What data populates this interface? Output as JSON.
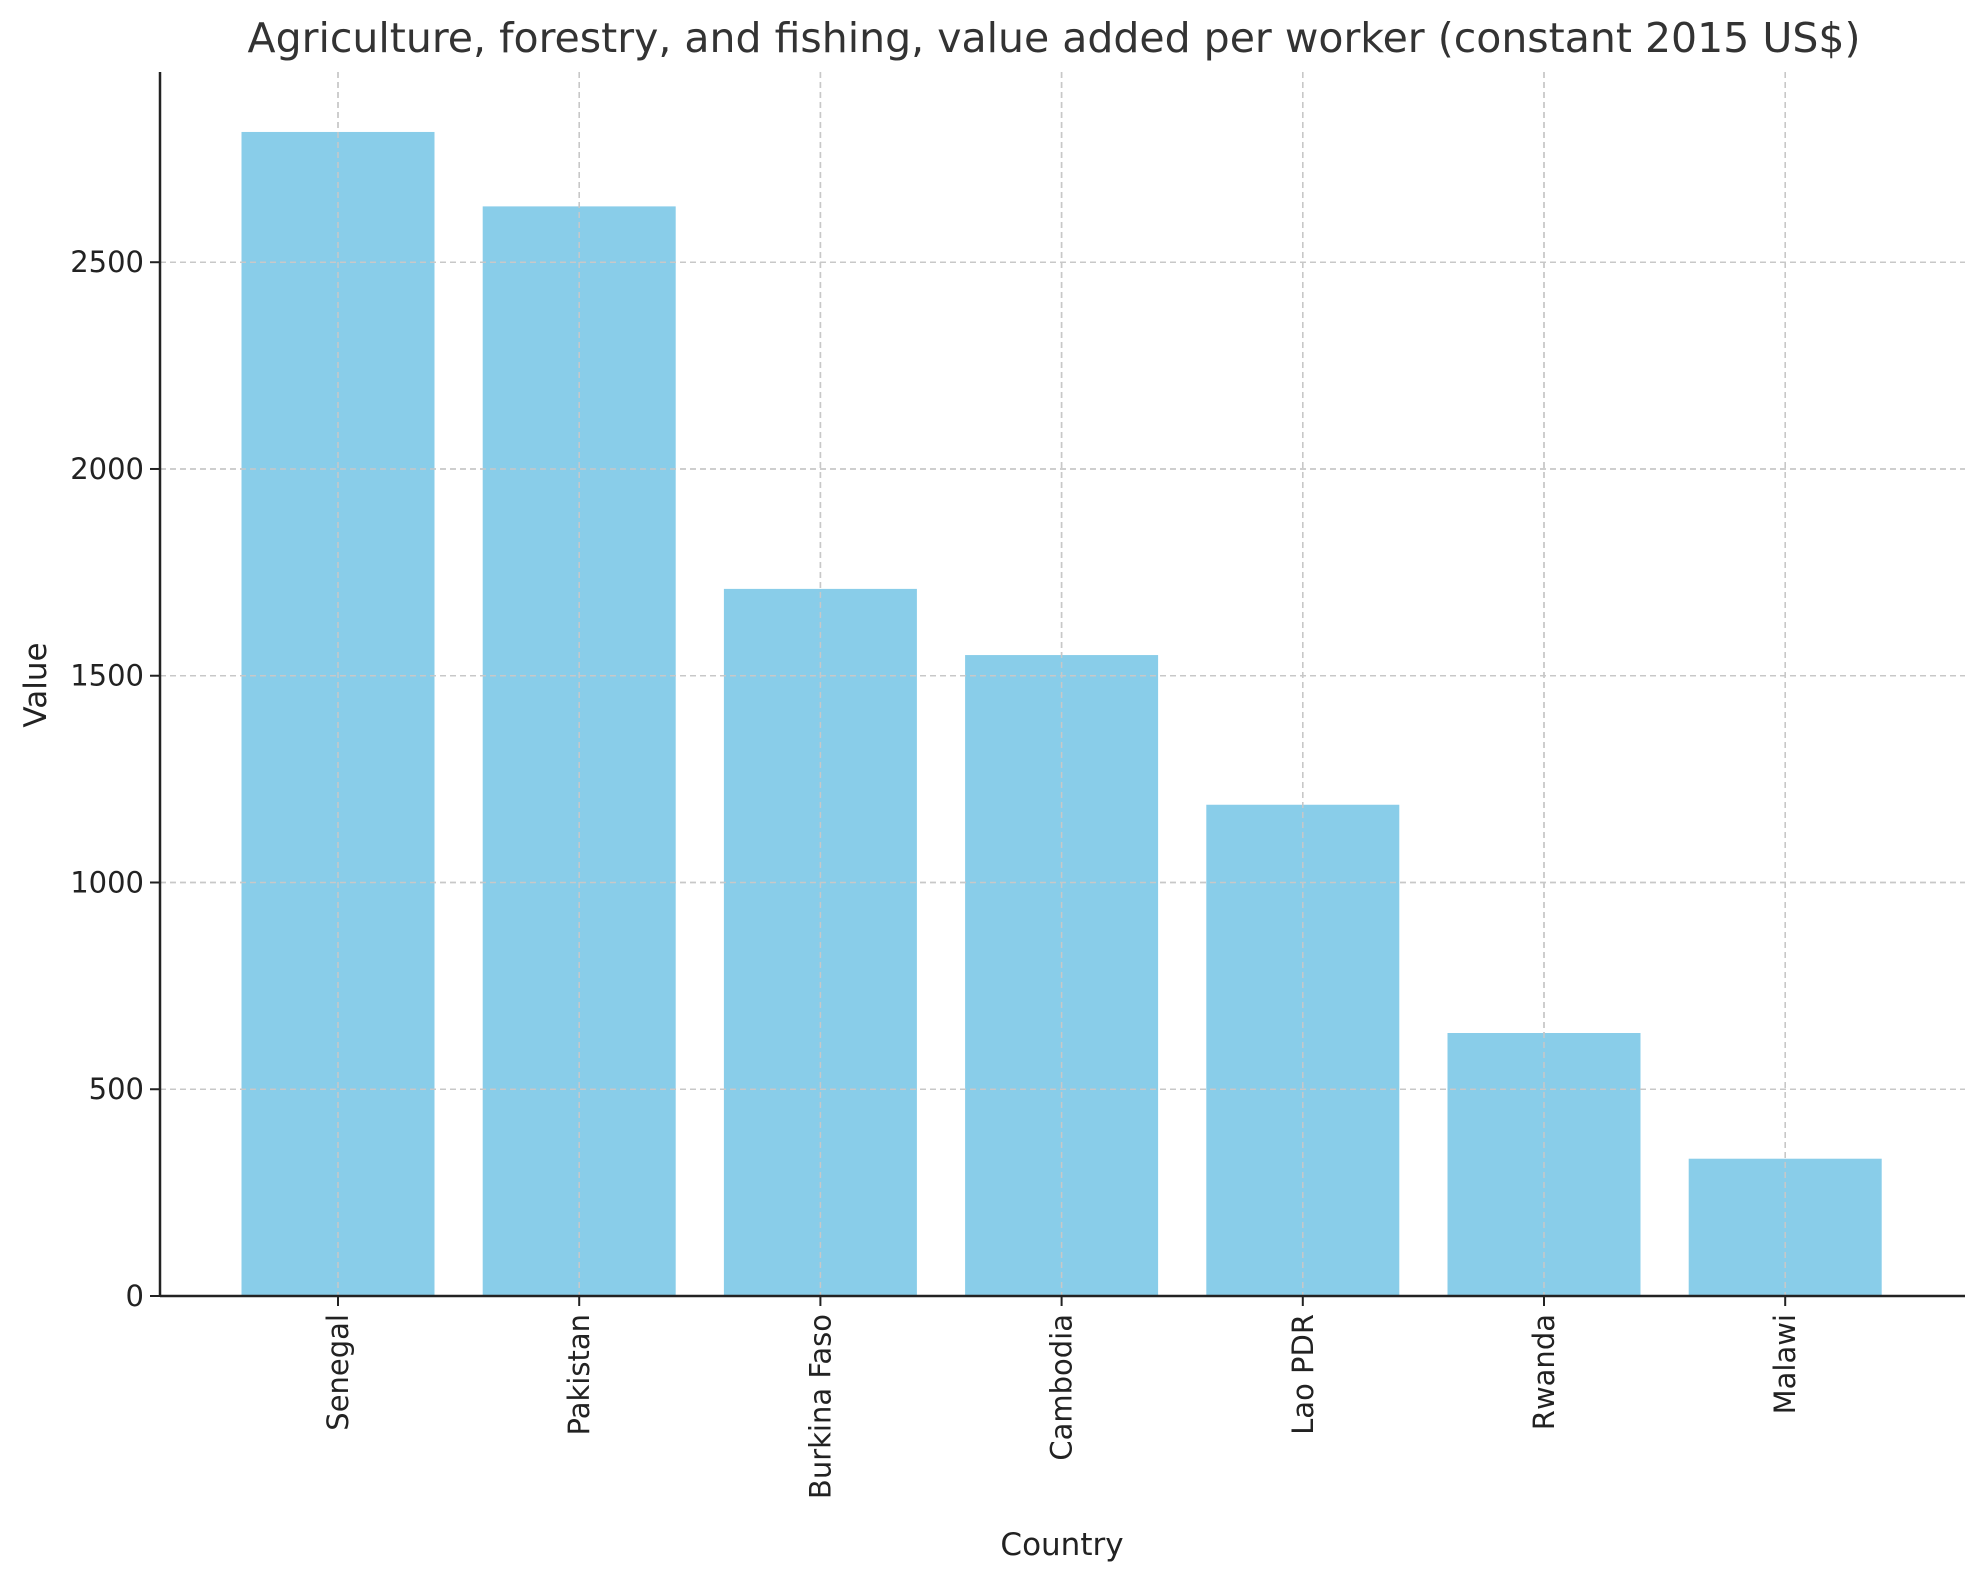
{
  "chart_data": {
    "type": "bar",
    "title": "Agriculture, forestry, and fishing, value added per worker (constant 2015 US$)",
    "xlabel": "Country",
    "ylabel": "Value",
    "categories": [
      "Senegal",
      "Pakistan",
      "Burkina Faso",
      "Cambodia",
      "Lao PDR",
      "Rwanda",
      "Malawi"
    ],
    "values": [
      2815,
      2635,
      1710,
      1550,
      1188,
      636,
      332
    ],
    "ylim": [
      0,
      2960
    ],
    "yticks": [
      0,
      500,
      1000,
      1500,
      2000,
      2500
    ],
    "ytick_labels": [
      "0",
      "500",
      "1000",
      "1500",
      "2000",
      "2500"
    ],
    "grid": true,
    "bar_color": "#89CDE9"
  }
}
